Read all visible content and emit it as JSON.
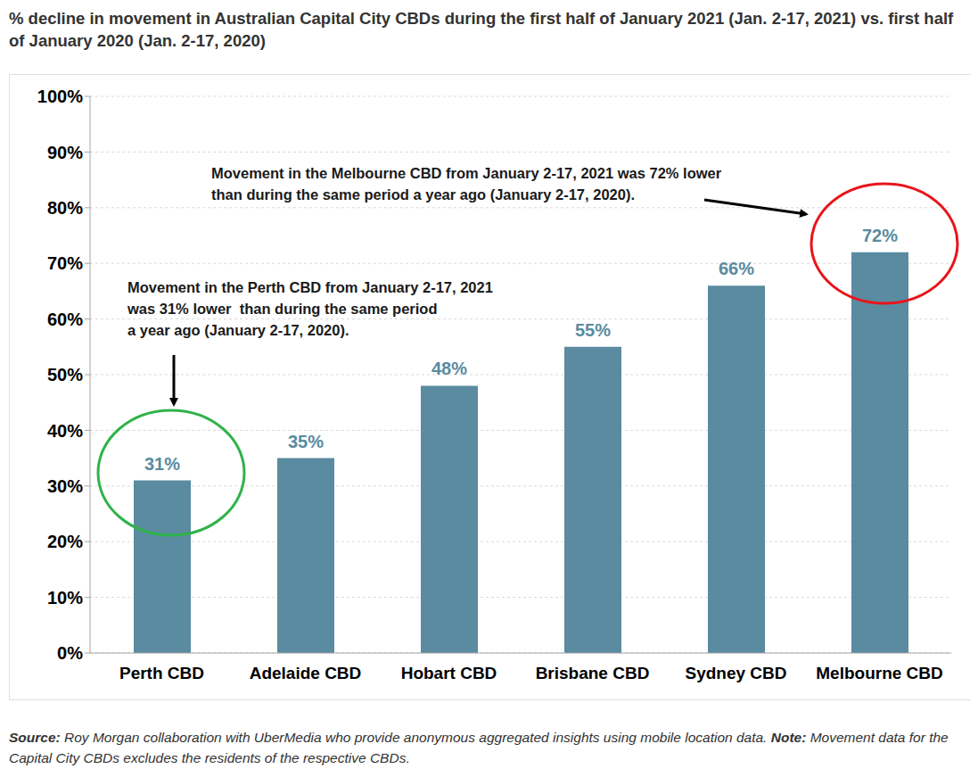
{
  "chart_data": {
    "type": "bar",
    "title": "% decline in movement in Australian Capital City CBDs during the first half of January 2021 (Jan. 2-17, 2021) vs. first half of January 2020 (Jan. 2-17, 2020)",
    "categories": [
      "Perth CBD",
      "Adelaide CBD",
      "Hobart CBD",
      "Brisbane CBD",
      "Sydney CBD",
      "Melbourne CBD"
    ],
    "values": [
      31,
      35,
      48,
      55,
      66,
      72
    ],
    "value_labels": [
      "31%",
      "35%",
      "48%",
      "55%",
      "66%",
      "72%"
    ],
    "data_labels": true,
    "color": "#5a8ba0",
    "ylim": [
      0,
      100
    ],
    "yticks": [
      {
        "value": 0,
        "label": "0%"
      },
      {
        "value": 10,
        "label": "10%"
      },
      {
        "value": 20,
        "label": "20%"
      },
      {
        "value": 30,
        "label": "30%"
      },
      {
        "value": 40,
        "label": "40%"
      },
      {
        "value": 50,
        "label": "50%"
      },
      {
        "value": 60,
        "label": "60%"
      },
      {
        "value": 70,
        "label": "70%"
      },
      {
        "value": 80,
        "label": "80%"
      },
      {
        "value": 90,
        "label": "90%"
      },
      {
        "value": 100,
        "label": "100%"
      }
    ],
    "grid": true,
    "annotations": [
      {
        "lines": [
          "Movement in the Perth CBD from January 2-17, 2021",
          "was 31% lower  than during the same period",
          "a year ago (January 2-17, 2020)."
        ]
      },
      {
        "lines": [
          "Movement in the Melbourne CBD from January 2-17, 2021 was 72% lower",
          "than during the same period a year ago (January 2-17, 2020)."
        ]
      }
    ],
    "footnotes": [
      {
        "label": "Source:",
        "text": "Roy Morgan collaboration with UberMedia who provide anonymous aggregated insights using mobile location data."
      },
      {
        "label": "Note:",
        "text": "Movement data for the Capital City CBDs excludes the residents of the respective CBDs."
      }
    ]
  }
}
